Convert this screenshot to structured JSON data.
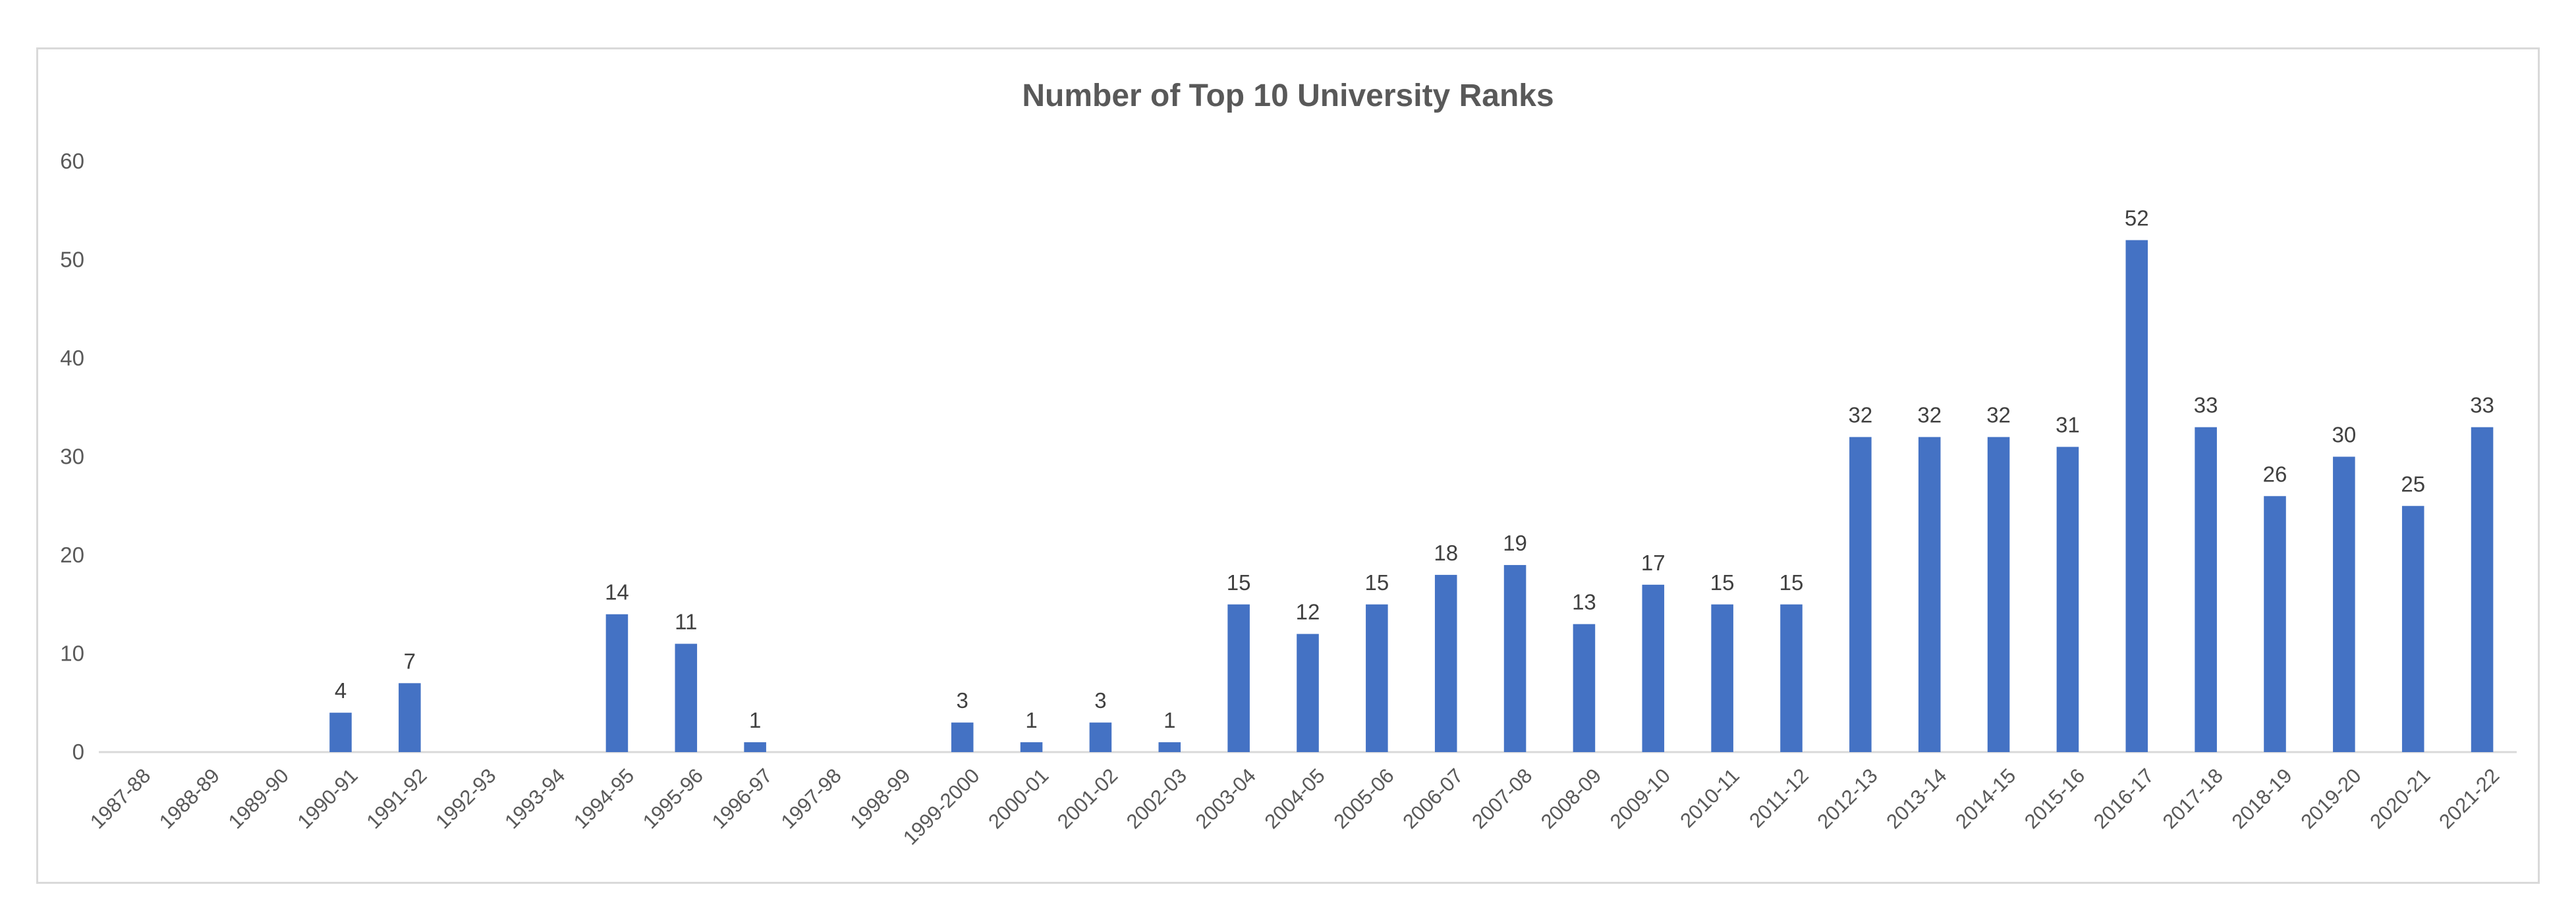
{
  "chart_data": {
    "type": "bar",
    "title": "Number of Top 10 University Ranks",
    "xlabel": "",
    "ylabel": "",
    "ylim": [
      0,
      60
    ],
    "yticks": [
      0,
      10,
      20,
      30,
      40,
      50,
      60
    ],
    "grid": false,
    "legend": "none",
    "bar_color": "#4472c4",
    "categories": [
      "1987-88",
      "1988-89",
      "1989-90",
      "1990-91",
      "1991-92",
      "1992-93",
      "1993-94",
      "1994-95",
      "1995-96",
      "1996-97",
      "1997-98",
      "1998-99",
      "1999-2000",
      "2000-01",
      "2001-02",
      "2002-03",
      "2003-04",
      "2004-05",
      "2005-06",
      "2006-07",
      "2007-08",
      "2008-09",
      "2009-10",
      "2010-11",
      "2011-12",
      "2012-13",
      "2013-14",
      "2014-15",
      "2015-16",
      "2016-17",
      "2017-18",
      "2018-19",
      "2019-20",
      "2020-21",
      "2021-22"
    ],
    "values": [
      0,
      0,
      0,
      4,
      7,
      0,
      0,
      14,
      11,
      1,
      0,
      0,
      3,
      1,
      3,
      1,
      15,
      12,
      15,
      18,
      19,
      13,
      17,
      15,
      15,
      32,
      32,
      32,
      31,
      52,
      33,
      26,
      30,
      25,
      33
    ],
    "data_labels": [
      null,
      null,
      null,
      "4",
      "7",
      null,
      null,
      "14",
      "11",
      "1",
      null,
      null,
      "3",
      "1",
      "3",
      "1",
      "15",
      "12",
      "15",
      "18",
      "19",
      "13",
      "17",
      "15",
      "15",
      "32",
      "32",
      "32",
      "31",
      "52",
      "33",
      "26",
      "30",
      "25",
      "33"
    ]
  }
}
